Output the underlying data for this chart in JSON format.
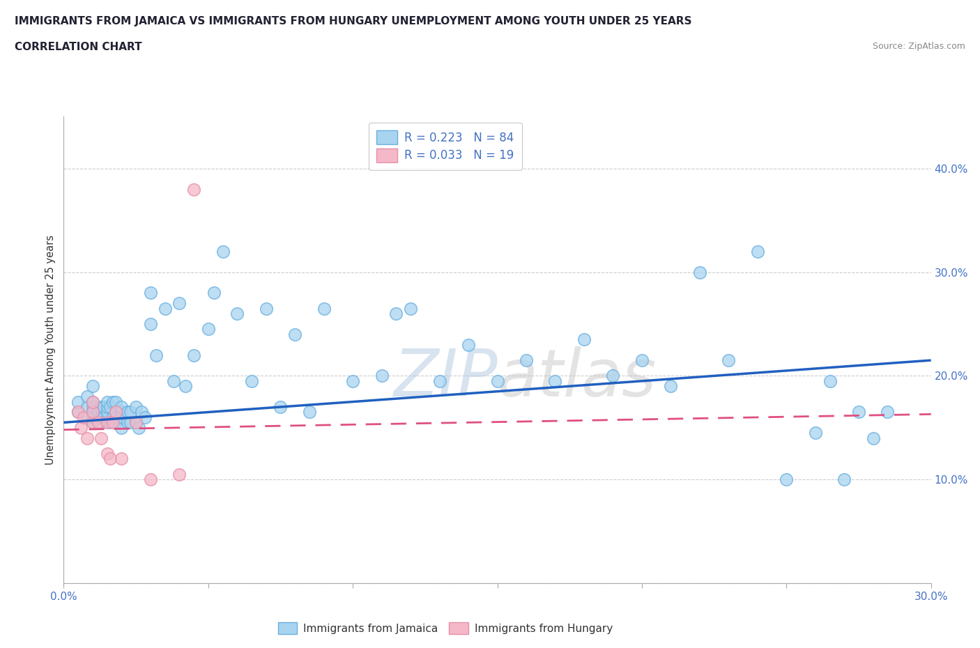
{
  "title_line1": "IMMIGRANTS FROM JAMAICA VS IMMIGRANTS FROM HUNGARY UNEMPLOYMENT AMONG YOUTH UNDER 25 YEARS",
  "title_line2": "CORRELATION CHART",
  "source_text": "Source: ZipAtlas.com",
  "ylabel": "Unemployment Among Youth under 25 years",
  "xlim": [
    0.0,
    0.3
  ],
  "ylim": [
    0.0,
    0.45
  ],
  "xticks": [
    0.0,
    0.05,
    0.1,
    0.15,
    0.2,
    0.25,
    0.3
  ],
  "xticklabels": [
    "0.0%",
    "",
    "",
    "",
    "",
    "",
    "30.0%"
  ],
  "yticks": [
    0.0,
    0.1,
    0.2,
    0.3,
    0.4
  ],
  "yticklabels": [
    "",
    "10.0%",
    "20.0%",
    "30.0%",
    "40.0%"
  ],
  "jamaica_color": "#a8d4f0",
  "hungary_color": "#f4b8c8",
  "jamaica_edge_color": "#6ab0e0",
  "hungary_edge_color": "#e890a8",
  "jamaica_line_color": "#2060c0",
  "hungary_line_color": "#e05080",
  "R_jamaica": 0.223,
  "N_jamaica": 84,
  "R_hungary": 0.033,
  "N_hungary": 19,
  "watermark": "ZIPatlas",
  "jamaica_x": [
    0.005,
    0.005,
    0.008,
    0.008,
    0.008,
    0.01,
    0.01,
    0.01,
    0.01,
    0.01,
    0.01,
    0.012,
    0.012,
    0.012,
    0.013,
    0.013,
    0.014,
    0.014,
    0.015,
    0.015,
    0.015,
    0.015,
    0.015,
    0.016,
    0.016,
    0.017,
    0.017,
    0.018,
    0.018,
    0.018,
    0.02,
    0.02,
    0.02,
    0.02,
    0.022,
    0.022,
    0.023,
    0.023,
    0.025,
    0.025,
    0.026,
    0.027,
    0.028,
    0.03,
    0.03,
    0.032,
    0.035,
    0.038,
    0.04,
    0.042,
    0.045,
    0.05,
    0.052,
    0.055,
    0.06,
    0.065,
    0.07,
    0.075,
    0.08,
    0.085,
    0.09,
    0.1,
    0.11,
    0.115,
    0.12,
    0.13,
    0.14,
    0.15,
    0.16,
    0.17,
    0.18,
    0.19,
    0.2,
    0.21,
    0.22,
    0.23,
    0.24,
    0.25,
    0.26,
    0.265,
    0.27,
    0.275,
    0.28,
    0.285
  ],
  "jamaica_y": [
    0.165,
    0.175,
    0.16,
    0.17,
    0.18,
    0.155,
    0.16,
    0.165,
    0.17,
    0.175,
    0.19,
    0.155,
    0.16,
    0.165,
    0.16,
    0.17,
    0.16,
    0.17,
    0.155,
    0.16,
    0.165,
    0.17,
    0.175,
    0.155,
    0.17,
    0.16,
    0.175,
    0.155,
    0.165,
    0.175,
    0.15,
    0.16,
    0.165,
    0.17,
    0.155,
    0.165,
    0.155,
    0.165,
    0.155,
    0.17,
    0.15,
    0.165,
    0.16,
    0.25,
    0.28,
    0.22,
    0.265,
    0.195,
    0.27,
    0.19,
    0.22,
    0.245,
    0.28,
    0.32,
    0.26,
    0.195,
    0.265,
    0.17,
    0.24,
    0.165,
    0.265,
    0.195,
    0.2,
    0.26,
    0.265,
    0.195,
    0.23,
    0.195,
    0.215,
    0.195,
    0.235,
    0.2,
    0.215,
    0.19,
    0.3,
    0.215,
    0.32,
    0.1,
    0.145,
    0.195,
    0.1,
    0.165,
    0.14,
    0.165
  ],
  "hungary_x": [
    0.005,
    0.006,
    0.007,
    0.008,
    0.01,
    0.01,
    0.01,
    0.012,
    0.013,
    0.015,
    0.015,
    0.016,
    0.017,
    0.018,
    0.02,
    0.025,
    0.03,
    0.04,
    0.045
  ],
  "hungary_y": [
    0.165,
    0.15,
    0.16,
    0.14,
    0.155,
    0.165,
    0.175,
    0.155,
    0.14,
    0.125,
    0.155,
    0.12,
    0.155,
    0.165,
    0.12,
    0.155,
    0.1,
    0.105,
    0.38
  ],
  "jamaica_trend_x": [
    0.0,
    0.3
  ],
  "jamaica_trend_y": [
    0.155,
    0.215
  ],
  "hungary_trend_x": [
    0.0,
    0.3
  ],
  "hungary_trend_y": [
    0.148,
    0.163
  ]
}
